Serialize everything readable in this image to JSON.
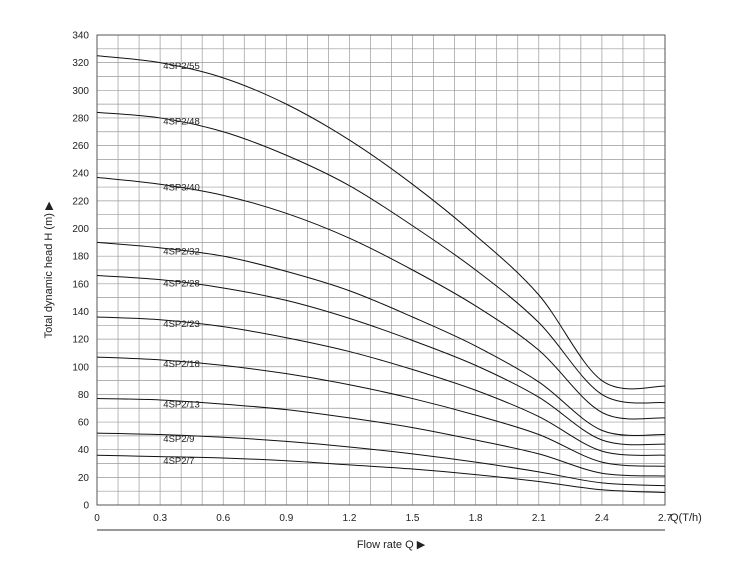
{
  "chart_data": {
    "type": "line",
    "title": "",
    "xlabel": "Flow rate Q ▶",
    "ylabel": "Total dynamic head H (m) ▶",
    "x_unit_label": "Q(T/h)",
    "xlim": [
      0,
      2.7
    ],
    "ylim": [
      0,
      340
    ],
    "x_ticks": [
      "0",
      "0.3",
      "0.6",
      "0.9",
      "1.2",
      "1.5",
      "1.8",
      "2.1",
      "2.4",
      "2.7"
    ],
    "y_ticks": [
      "0",
      "20",
      "40",
      "60",
      "80",
      "100",
      "120",
      "140",
      "160",
      "180",
      "200",
      "220",
      "240",
      "260",
      "280",
      "300",
      "320",
      "340"
    ],
    "grid": true,
    "x": [
      0,
      0.3,
      0.6,
      0.9,
      1.2,
      1.5,
      1.8,
      2.1,
      2.4,
      2.7
    ],
    "series": [
      {
        "name": "4SP2/55",
        "values": [
          325,
          320,
          309,
          290,
          264,
          232,
          195,
          152,
          90,
          86
        ]
      },
      {
        "name": "4SP2/48",
        "values": [
          284,
          280,
          270,
          253,
          231,
          202,
          170,
          132,
          80,
          74
        ]
      },
      {
        "name": "4SP3/40",
        "values": [
          237,
          232,
          224,
          211,
          193,
          170,
          144,
          112,
          67,
          63
        ]
      },
      {
        "name": "4SP2/32",
        "values": [
          190,
          186,
          180,
          169,
          155,
          136,
          115,
          89,
          54,
          51
        ]
      },
      {
        "name": "4SP2/28",
        "values": [
          166,
          163,
          157,
          148,
          135,
          119,
          101,
          78,
          47,
          44
        ]
      },
      {
        "name": "4SP2/23",
        "values": [
          136,
          134,
          129,
          121,
          111,
          98,
          83,
          64,
          39,
          36
        ]
      },
      {
        "name": "4SP2/18",
        "values": [
          107,
          105,
          101,
          95,
          87,
          77,
          65,
          51,
          31,
          28
        ]
      },
      {
        "name": "4SP2/13",
        "values": [
          77,
          76,
          73,
          69,
          63,
          56,
          47,
          37,
          23,
          21
        ]
      },
      {
        "name": "4SP2/9",
        "values": [
          52,
          51,
          49,
          46,
          42,
          37,
          31,
          24,
          16,
          14
        ]
      },
      {
        "name": "4SP2/7",
        "values": [
          36,
          35,
          34,
          32,
          29,
          26,
          22,
          17,
          11,
          9
        ]
      }
    ]
  }
}
